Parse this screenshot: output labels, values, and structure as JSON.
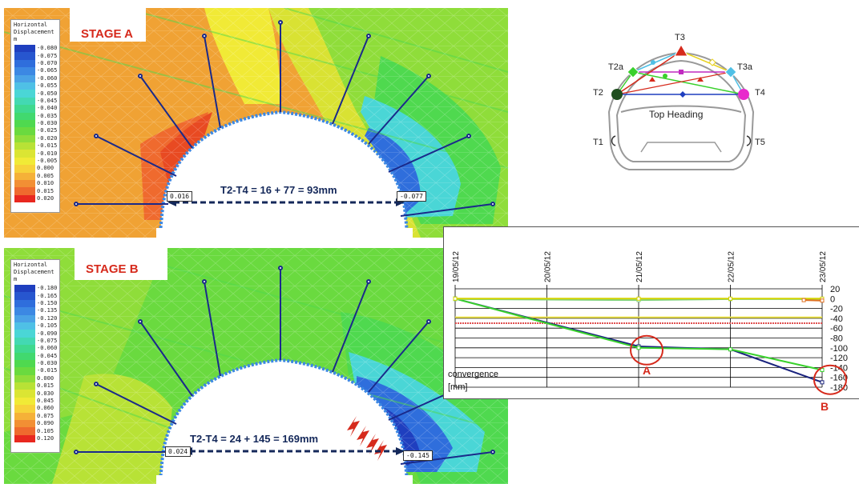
{
  "panels": [
    {
      "id": "stage-a",
      "stage_label": "STAGE A",
      "legend_title": "Horizontal\nDisplacement\nm",
      "legend_values": [
        "-0.080",
        "-0.075",
        "-0.070",
        "-0.065",
        "-0.060",
        "-0.055",
        "-0.050",
        "-0.045",
        "-0.040",
        "-0.035",
        "-0.030",
        "-0.025",
        "-0.020",
        "-0.015",
        "-0.010",
        "-0.005",
        "0.000",
        "0.005",
        "0.010",
        "0.015",
        "0.020"
      ],
      "legend_colors": [
        "#1f3fbf",
        "#2756cf",
        "#2f6edc",
        "#3c88e3",
        "#4aa2e6",
        "#4fc0e6",
        "#4ad6d6",
        "#43d9b2",
        "#3fd98f",
        "#41d96f",
        "#4fd94f",
        "#6ada3f",
        "#8fdd3a",
        "#b8e236",
        "#dbe533",
        "#f1ea36",
        "#f7d23a",
        "#f5b138",
        "#f28f34",
        "#ef6a2e",
        "#e8281f"
      ],
      "measurement": "T2-T4 = 16 + 77 = 93mm",
      "left_value": "0.016",
      "right_value": "-0.077"
    },
    {
      "id": "stage-b",
      "stage_label": "STAGE B",
      "legend_title": "Horizontal\nDisplacement\nm",
      "legend_values": [
        "-0.180",
        "-0.165",
        "-0.150",
        "-0.135",
        "-0.120",
        "-0.105",
        "-0.090",
        "-0.075",
        "-0.060",
        "-0.045",
        "-0.030",
        "-0.015",
        "0.000",
        "0.015",
        "0.030",
        "0.045",
        "0.060",
        "0.075",
        "0.090",
        "0.105",
        "0.120"
      ],
      "legend_colors": [
        "#1f3fbf",
        "#2756cf",
        "#2f6edc",
        "#3c88e3",
        "#4aa2e6",
        "#4fc0e6",
        "#4ad6d6",
        "#43d9b2",
        "#3fd98f",
        "#41d96f",
        "#4fd94f",
        "#6ada3f",
        "#8fdd3a",
        "#b8e236",
        "#dbe533",
        "#f1ea36",
        "#f7d23a",
        "#f5b138",
        "#f28f34",
        "#ef6a2e",
        "#e8281f"
      ],
      "measurement": "T2-T4 = 24 + 145  = 169mm",
      "left_value": "0.024",
      "right_value": "-0.145"
    }
  ],
  "schematic": {
    "points": [
      "T3",
      "T2a",
      "T3a",
      "T2",
      "T4",
      "T1",
      "T5"
    ],
    "top_heading": "Top Heading"
  },
  "chart_data": {
    "type": "line",
    "x": [
      "19/05/12",
      "20/05/12",
      "21/05/12",
      "22/05/12",
      "23/05/12"
    ],
    "ylim": [
      -180,
      20
    ],
    "yticks": [
      20,
      0,
      -20,
      -40,
      -60,
      -80,
      -100,
      -120,
      -140,
      -160,
      -180
    ],
    "ylabel": "convergence\n[mm]",
    "series": [
      {
        "color": "#1a237e",
        "points": [
          [
            0,
            0
          ],
          [
            2,
            -97
          ],
          [
            3,
            -103
          ],
          [
            4,
            -170
          ]
        ]
      },
      {
        "color": "#39d12c",
        "points": [
          [
            0,
            0
          ],
          [
            2,
            -100
          ],
          [
            3,
            -103
          ],
          [
            4,
            -145
          ]
        ]
      },
      {
        "color": "#7fd37a",
        "points": [
          [
            0,
            -1
          ],
          [
            2,
            -3
          ],
          [
            3,
            -1
          ],
          [
            4,
            -1
          ]
        ]
      },
      {
        "color": "#d4d400",
        "points": [
          [
            0,
            0
          ],
          [
            2,
            0
          ],
          [
            3,
            0
          ],
          [
            4,
            0
          ]
        ]
      },
      {
        "color": "#e07020",
        "points": [
          [
            3.8,
            -3
          ],
          [
            4,
            -4
          ]
        ]
      }
    ],
    "thresholds": [
      {
        "value": -38,
        "color": "#f2e84a"
      },
      {
        "value": -50,
        "color": "#e05050"
      }
    ],
    "markers": [
      {
        "label": "A",
        "x": 2,
        "y": -100
      },
      {
        "label": "B",
        "x": 4,
        "y": -160
      }
    ]
  }
}
